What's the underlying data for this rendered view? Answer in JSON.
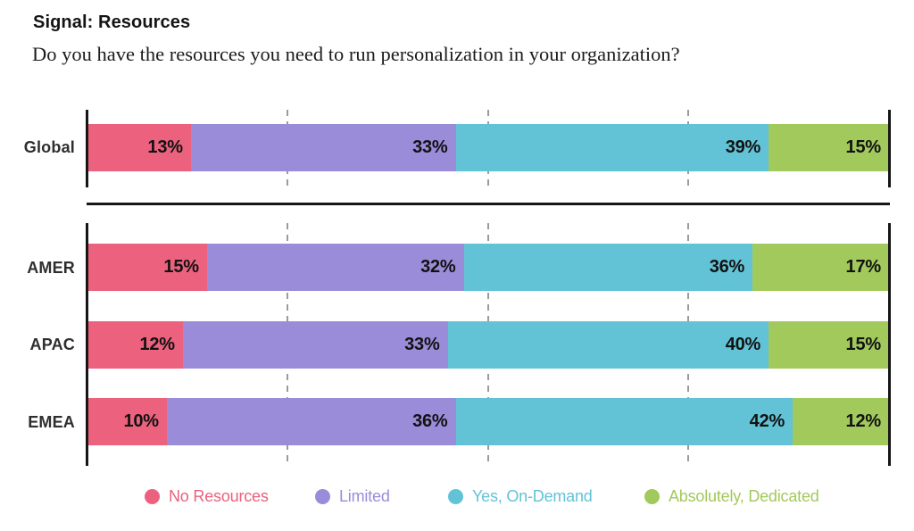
{
  "header": {
    "title": "Signal: Resources",
    "question": "Do you have the resources you need to run personalization in your organization?"
  },
  "chart_data": {
    "type": "bar",
    "stacked": true,
    "orientation": "horizontal",
    "unit": "%",
    "xlim": [
      0,
      100
    ],
    "gridlines_percent": [
      25,
      50,
      75
    ],
    "legend_position": "bottom",
    "series": [
      {
        "key": "no-resources",
        "label": "No Resources",
        "color": "#EC617E"
      },
      {
        "key": "limited",
        "label": "Limited",
        "color": "#9A8CD9"
      },
      {
        "key": "yes-on-demand",
        "label": "Yes, On-Demand",
        "color": "#62C3D6"
      },
      {
        "key": "absolutely-dedicated",
        "label": "Absolutely, Dedicated",
        "color": "#A2C95B"
      }
    ],
    "rows": [
      {
        "region": "Global",
        "values": [
          13,
          33,
          39,
          15
        ]
      },
      {
        "region": "AMER",
        "values": [
          15,
          32,
          36,
          17
        ]
      },
      {
        "region": "APAC",
        "values": [
          12,
          33,
          40,
          15
        ]
      },
      {
        "region": "EMEA",
        "values": [
          10,
          36,
          42,
          12
        ]
      }
    ]
  }
}
